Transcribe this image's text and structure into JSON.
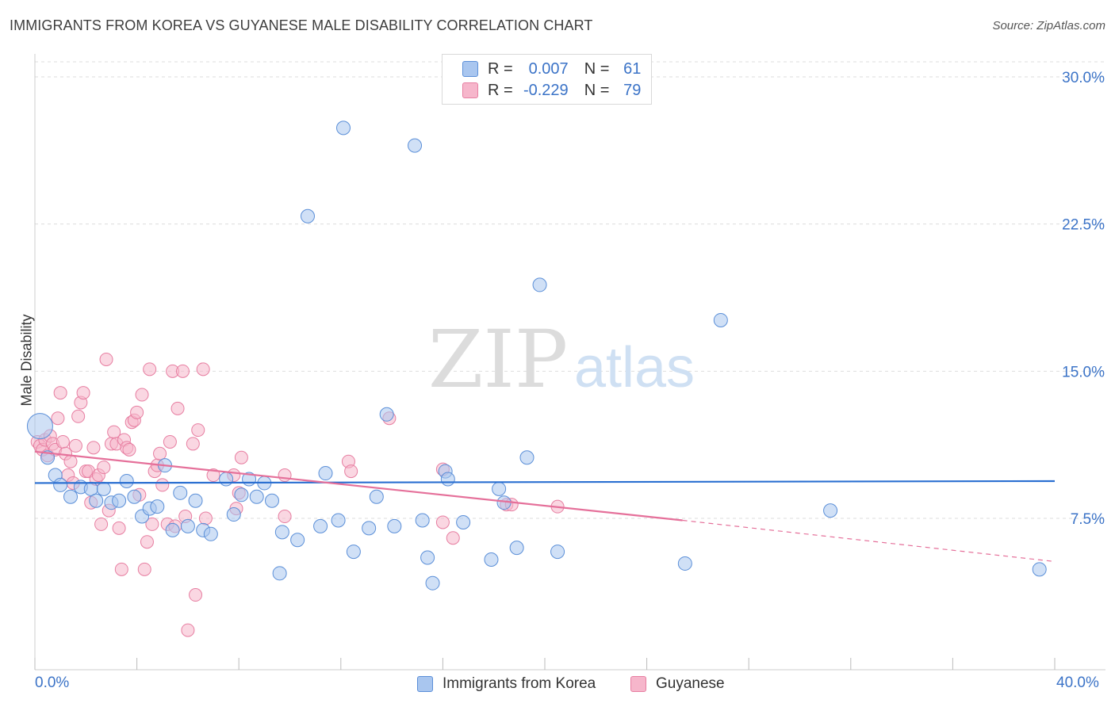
{
  "title": "IMMIGRANTS FROM KOREA VS GUYANESE MALE DISABILITY CORRELATION CHART",
  "source": "Source: ZipAtlas.com",
  "watermark": {
    "zip": "ZIP",
    "atlas": "atlas"
  },
  "colors": {
    "korea_fill": "#a9c6ef",
    "korea_stroke": "#5b8fd8",
    "korea_line": "#2a6fd1",
    "guy_fill": "#f6b6cb",
    "guy_stroke": "#e77ea1",
    "guy_line": "#e5709a",
    "axis_text": "#3b73c7",
    "grid": "#dddddd"
  },
  "legend": {
    "rows": [
      {
        "r_label": "R =",
        "r_value": "0.007",
        "n_label": "N =",
        "n_value": "61"
      },
      {
        "r_label": "R =",
        "r_value": "-0.229",
        "n_label": "N =",
        "n_value": "79"
      }
    ]
  },
  "bottom_legend": {
    "korea": "Immigrants from Korea",
    "guyanese": "Guyanese"
  },
  "chart_data": {
    "type": "scatter",
    "title": "IMMIGRANTS FROM KOREA VS GUYANESE MALE DISABILITY CORRELATION CHART",
    "xlabel": "",
    "ylabel": "Male Disability",
    "xlim": [
      0,
      40
    ],
    "ylim": [
      0,
      31
    ],
    "x_tick_labels": [
      "0.0%",
      "40.0%"
    ],
    "y_ticks": [
      7.5,
      15.0,
      22.5,
      30.0
    ],
    "y_tick_labels": [
      "7.5%",
      "15.0%",
      "22.5%",
      "30.0%"
    ],
    "grid": true,
    "series": [
      {
        "name": "Immigrants from Korea",
        "trend": {
          "x": [
            0,
            40
          ],
          "y": [
            9.3,
            9.4
          ]
        },
        "points": [
          [
            0.2,
            12.2
          ],
          [
            0.5,
            10.6
          ],
          [
            0.8,
            9.7
          ],
          [
            1.0,
            9.2
          ],
          [
            1.4,
            8.6
          ],
          [
            1.8,
            9.1
          ],
          [
            2.2,
            9.0
          ],
          [
            2.4,
            8.4
          ],
          [
            2.7,
            9.0
          ],
          [
            3.0,
            8.3
          ],
          [
            3.3,
            8.4
          ],
          [
            3.6,
            9.4
          ],
          [
            3.9,
            8.6
          ],
          [
            4.2,
            7.6
          ],
          [
            4.5,
            8.0
          ],
          [
            4.8,
            8.1
          ],
          [
            5.1,
            10.2
          ],
          [
            5.4,
            6.9
          ],
          [
            5.7,
            8.8
          ],
          [
            6.0,
            7.1
          ],
          [
            6.3,
            8.4
          ],
          [
            6.6,
            6.9
          ],
          [
            6.9,
            6.7
          ],
          [
            7.5,
            9.5
          ],
          [
            7.8,
            7.7
          ],
          [
            8.1,
            8.7
          ],
          [
            8.4,
            9.5
          ],
          [
            8.7,
            8.6
          ],
          [
            9.0,
            9.3
          ],
          [
            9.3,
            8.4
          ],
          [
            9.6,
            4.7
          ],
          [
            9.7,
            6.8
          ],
          [
            10.3,
            6.4
          ],
          [
            10.7,
            22.9
          ],
          [
            11.2,
            7.1
          ],
          [
            11.4,
            9.8
          ],
          [
            11.9,
            7.4
          ],
          [
            12.1,
            27.4
          ],
          [
            12.5,
            5.8
          ],
          [
            13.1,
            7.0
          ],
          [
            13.4,
            8.6
          ],
          [
            13.8,
            12.8
          ],
          [
            14.1,
            7.1
          ],
          [
            14.9,
            26.5
          ],
          [
            15.2,
            7.4
          ],
          [
            15.4,
            5.5
          ],
          [
            15.6,
            4.2
          ],
          [
            16.1,
            9.9
          ],
          [
            16.2,
            9.5
          ],
          [
            16.8,
            7.3
          ],
          [
            17.9,
            5.4
          ],
          [
            18.2,
            9.0
          ],
          [
            18.4,
            8.3
          ],
          [
            18.9,
            6.0
          ],
          [
            19.3,
            10.6
          ],
          [
            19.8,
            19.4
          ],
          [
            20.5,
            5.8
          ],
          [
            25.5,
            5.2
          ],
          [
            26.9,
            17.6
          ],
          [
            31.2,
            7.9
          ],
          [
            39.4,
            4.9
          ]
        ]
      },
      {
        "name": "Guyanese",
        "trend": {
          "x": [
            0,
            25.4
          ],
          "y": [
            10.9,
            7.4
          ]
        },
        "trend_dashed": {
          "x": [
            25.4,
            40
          ],
          "y": [
            7.4,
            5.3
          ]
        },
        "points": [
          [
            0.1,
            11.4
          ],
          [
            0.2,
            11.2
          ],
          [
            0.3,
            11.0
          ],
          [
            0.4,
            11.5
          ],
          [
            0.5,
            10.7
          ],
          [
            0.6,
            11.7
          ],
          [
            0.7,
            11.3
          ],
          [
            0.8,
            11.0
          ],
          [
            0.9,
            12.6
          ],
          [
            1.0,
            13.9
          ],
          [
            1.1,
            11.4
          ],
          [
            1.2,
            10.8
          ],
          [
            1.3,
            9.7
          ],
          [
            1.4,
            10.4
          ],
          [
            1.5,
            9.3
          ],
          [
            1.6,
            11.2
          ],
          [
            1.7,
            12.7
          ],
          [
            1.8,
            13.4
          ],
          [
            1.9,
            13.9
          ],
          [
            2.0,
            9.9
          ],
          [
            2.1,
            9.9
          ],
          [
            2.2,
            8.3
          ],
          [
            2.3,
            11.1
          ],
          [
            2.4,
            9.5
          ],
          [
            2.5,
            9.7
          ],
          [
            2.6,
            7.2
          ],
          [
            2.7,
            10.1
          ],
          [
            2.8,
            15.6
          ],
          [
            2.9,
            7.9
          ],
          [
            3.0,
            11.3
          ],
          [
            3.1,
            11.9
          ],
          [
            3.2,
            11.3
          ],
          [
            3.3,
            7.0
          ],
          [
            3.4,
            4.9
          ],
          [
            3.5,
            11.5
          ],
          [
            3.6,
            11.1
          ],
          [
            3.7,
            11.0
          ],
          [
            3.8,
            12.4
          ],
          [
            3.9,
            12.5
          ],
          [
            4.0,
            12.9
          ],
          [
            4.1,
            8.7
          ],
          [
            4.2,
            13.8
          ],
          [
            4.3,
            4.9
          ],
          [
            4.4,
            6.3
          ],
          [
            4.5,
            15.1
          ],
          [
            4.6,
            7.2
          ],
          [
            4.7,
            9.9
          ],
          [
            4.8,
            10.2
          ],
          [
            4.9,
            10.8
          ],
          [
            5.0,
            9.2
          ],
          [
            5.2,
            7.2
          ],
          [
            5.3,
            11.4
          ],
          [
            5.4,
            15.0
          ],
          [
            5.5,
            7.1
          ],
          [
            5.6,
            13.1
          ],
          [
            5.8,
            15.0
          ],
          [
            5.9,
            7.6
          ],
          [
            6.0,
            1.8
          ],
          [
            6.2,
            11.3
          ],
          [
            6.3,
            3.6
          ],
          [
            6.4,
            12.0
          ],
          [
            6.6,
            15.1
          ],
          [
            6.7,
            7.5
          ],
          [
            7.0,
            9.7
          ],
          [
            7.8,
            9.7
          ],
          [
            7.9,
            8.0
          ],
          [
            8.0,
            8.8
          ],
          [
            8.1,
            10.6
          ],
          [
            9.8,
            9.7
          ],
          [
            9.8,
            7.6
          ],
          [
            12.3,
            10.4
          ],
          [
            12.4,
            9.9
          ],
          [
            13.9,
            12.6
          ],
          [
            16.0,
            10.0
          ],
          [
            16.0,
            7.3
          ],
          [
            16.4,
            6.5
          ],
          [
            18.5,
            8.2
          ],
          [
            18.7,
            8.2
          ],
          [
            20.5,
            8.1
          ]
        ]
      }
    ]
  }
}
